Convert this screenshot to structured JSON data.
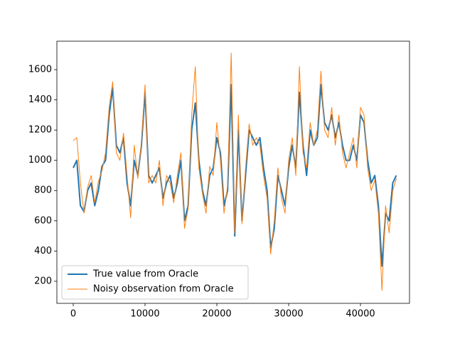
{
  "chart_data": {
    "type": "line",
    "x": [
      0,
      500,
      1000,
      1500,
      2000,
      2500,
      3000,
      3500,
      4000,
      4500,
      5000,
      5500,
      6000,
      6500,
      7000,
      7500,
      8000,
      8500,
      9000,
      9500,
      10000,
      10500,
      11000,
      11500,
      12000,
      12500,
      13000,
      13500,
      14000,
      14500,
      15000,
      15500,
      16000,
      16500,
      17000,
      17500,
      18000,
      18500,
      19000,
      19500,
      20000,
      20500,
      21000,
      21500,
      22000,
      22500,
      23000,
      23500,
      24000,
      24500,
      25000,
      25500,
      26000,
      26500,
      27000,
      27500,
      28000,
      28500,
      29000,
      29500,
      30000,
      30500,
      31000,
      31500,
      32000,
      32500,
      33000,
      33500,
      34000,
      34500,
      35000,
      35500,
      36000,
      36500,
      37000,
      37500,
      38000,
      38500,
      39000,
      39500,
      40000,
      40500,
      41000,
      41500,
      42000,
      42500,
      43000,
      43500,
      44000,
      44500,
      45000
    ],
    "series": [
      {
        "name": "True value from Oracle",
        "color": "#1f77b4",
        "width": 2,
        "values": [
          950,
          1000,
          700,
          660,
          800,
          850,
          700,
          800,
          960,
          1000,
          1300,
          1480,
          1100,
          1050,
          1150,
          850,
          700,
          1000,
          900,
          1100,
          1450,
          900,
          850,
          900,
          950,
          750,
          850,
          900,
          750,
          850,
          1000,
          600,
          700,
          1200,
          1380,
          1000,
          800,
          700,
          900,
          950,
          1150,
          1050,
          700,
          800,
          1500,
          500,
          1200,
          600,
          900,
          1200,
          1150,
          1100,
          1150,
          950,
          800,
          420,
          550,
          900,
          800,
          700,
          950,
          1100,
          950,
          1450,
          1100,
          900,
          1200,
          1100,
          1150,
          1500,
          1250,
          1200,
          1300,
          1150,
          1250,
          1100,
          1000,
          1000,
          1100,
          1000,
          1300,
          1250,
          1000,
          850,
          900,
          700,
          300,
          650,
          600,
          850,
          900
        ]
      },
      {
        "name": "Noisy observation from Oracle",
        "color": "#ff7f0e",
        "width": 1,
        "values": [
          1130,
          1150,
          850,
          650,
          820,
          900,
          720,
          860,
          930,
          1050,
          1350,
          1520,
          1050,
          1000,
          1180,
          900,
          620,
          1100,
          880,
          1120,
          1500,
          850,
          900,
          850,
          1000,
          700,
          900,
          850,
          720,
          900,
          1050,
          550,
          680,
          1300,
          1620,
          950,
          780,
          650,
          960,
          900,
          1250,
          1000,
          650,
          830,
          1710,
          520,
          1300,
          580,
          950,
          1240,
          1100,
          1150,
          1100,
          900,
          750,
          380,
          600,
          950,
          750,
          650,
          1000,
          1150,
          900,
          1620,
          1050,
          950,
          1250,
          1100,
          1200,
          1590,
          1200,
          1150,
          1350,
          1100,
          1300,
          1050,
          950,
          1050,
          1150,
          950,
          1350,
          1300,
          950,
          800,
          870,
          650,
          140,
          700,
          520,
          800,
          880
        ]
      }
    ],
    "xlim": [
      -2277,
      46832
    ],
    "ylim": [
      54,
      1788
    ],
    "xticks": [
      0,
      10000,
      20000,
      30000,
      40000
    ],
    "yticks": [
      200,
      400,
      600,
      800,
      1000,
      1200,
      1400,
      1600
    ],
    "legend": "lower left"
  }
}
